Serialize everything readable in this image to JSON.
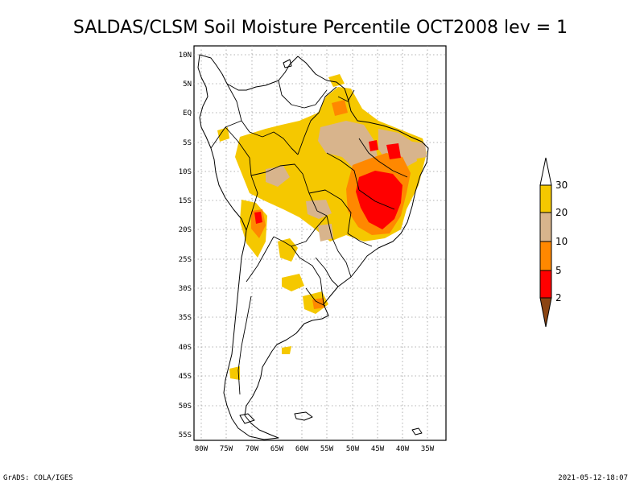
{
  "title": "SALDAS/CLSM Soil Moisture Percentile OCT2008 lev = 1",
  "footer": {
    "left": "GrADS: COLA/IGES",
    "right": "2021-05-12-18:07"
  },
  "lat_labels": [
    "10N",
    "5N",
    "EQ",
    "5S",
    "10S",
    "15S",
    "20S",
    "25S",
    "30S",
    "35S",
    "40S",
    "45S",
    "50S",
    "55S"
  ],
  "lon_labels": [
    "80W",
    "75W",
    "70W",
    "65W",
    "60W",
    "55W",
    "50W",
    "45W",
    "40W",
    "35W"
  ],
  "colorbar": {
    "labels": [
      "30",
      "20",
      "10",
      "5",
      "2"
    ],
    "colors": {
      "above_30": "#ffffff",
      "20_30": "#f5c800",
      "10_20": "#d8b48c",
      "5_10": "#ff8800",
      "2_5": "#ff0000",
      "below_2": "#8b4513"
    }
  }
}
